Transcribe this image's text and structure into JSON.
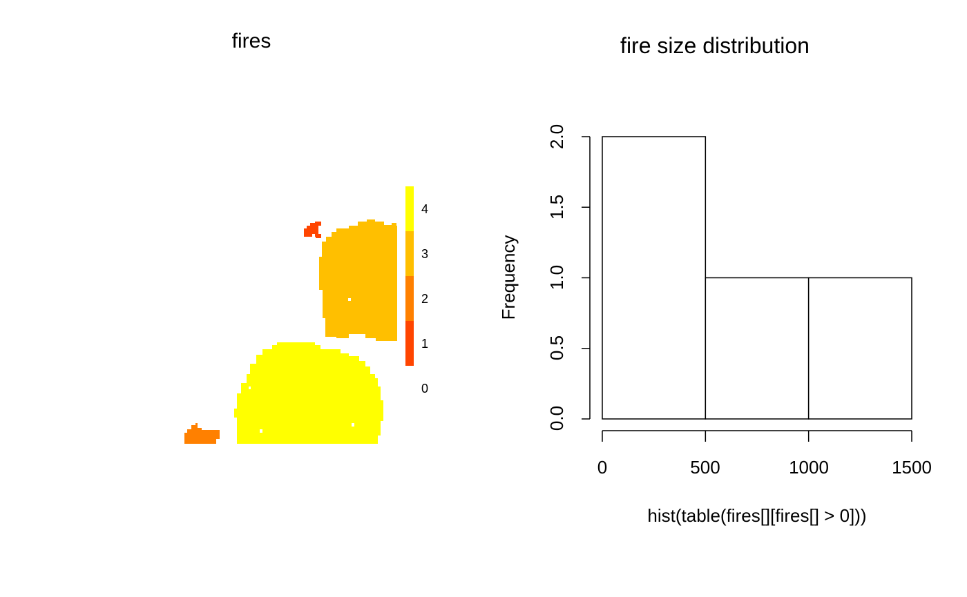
{
  "chart_data": [
    {
      "type": "heatmap",
      "title": "fires",
      "legend": {
        "ticks": [
          "4",
          "3",
          "2",
          "1",
          "0"
        ],
        "bins": [
          {
            "from": 0.5,
            "to": 1.5,
            "color": "#ff4500"
          },
          {
            "from": 1.5,
            "to": 2.5,
            "color": "#ff8000"
          },
          {
            "from": 2.5,
            "to": 3.5,
            "color": "#ffbf00"
          },
          {
            "from": 3.5,
            "to": 4.5,
            "color": "#ffff00"
          }
        ]
      },
      "patches": [
        {
          "id": 1,
          "color": "#ff4500"
        },
        {
          "id": 2,
          "color": "#ff8000"
        },
        {
          "id": 3,
          "color": "#ffbf00"
        },
        {
          "id": 4,
          "color": "#ffff00"
        }
      ],
      "axes": false
    },
    {
      "type": "bar",
      "title": "fire size distribution",
      "xlabel": "hist(table(fires[][fires[] > 0]))",
      "ylabel": "Frequency",
      "bins": [
        {
          "from": 0,
          "to": 500,
          "count": 2
        },
        {
          "from": 500,
          "to": 1000,
          "count": 1
        },
        {
          "from": 1000,
          "to": 1500,
          "count": 1
        }
      ],
      "xticks": [
        "0",
        "500",
        "1000",
        "1500"
      ],
      "yticks": [
        "0.0",
        "0.5",
        "1.0",
        "1.5",
        "2.0"
      ],
      "xlim": [
        0,
        1500
      ],
      "ylim": [
        0,
        2
      ],
      "bar_fill": "#ffffff",
      "bar_stroke": "#000000"
    }
  ]
}
